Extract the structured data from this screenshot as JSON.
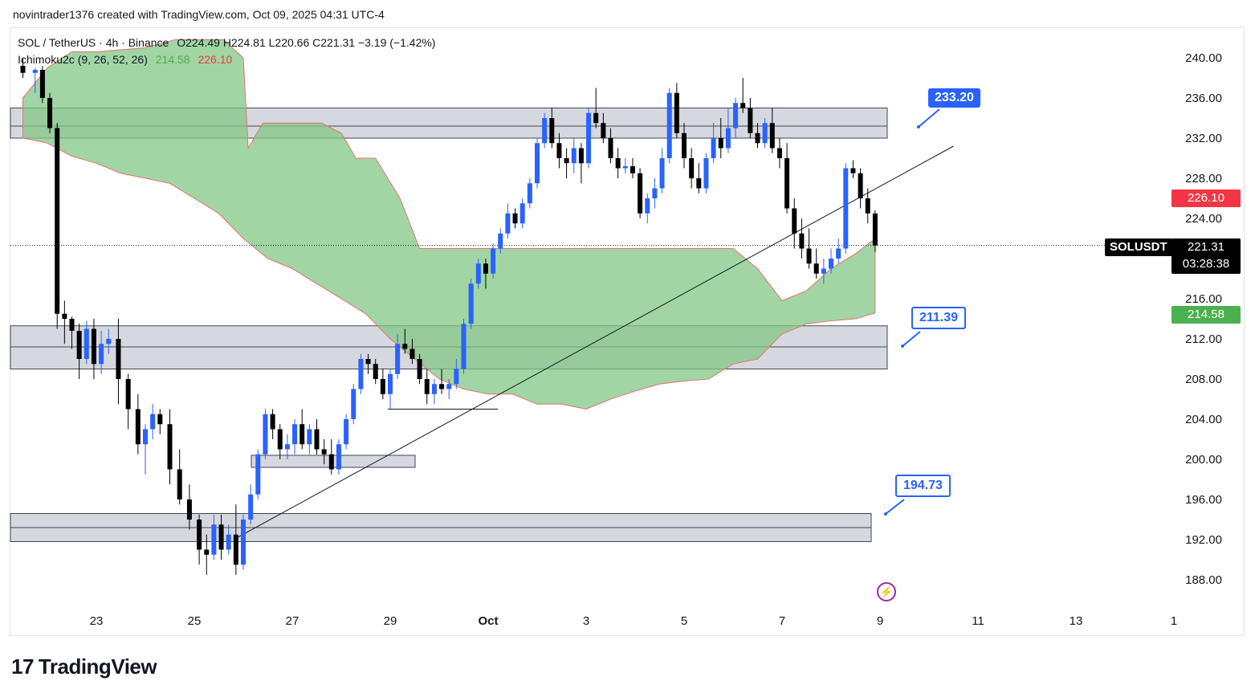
{
  "header": {
    "text": "novintrader1376 created with TradingView.com, Oct 09, 2025 04:31 UTC-4"
  },
  "legend": {
    "symbol_line": "SOL / TetherUS · 4h · Binance",
    "ohlc": "O224.49 H224.81 L220.66 C221.31 −3.19 (−1.42%)",
    "indicator_name": "Ichimoku2c (9, 26, 52, 26)",
    "indicator_val1": "214.58",
    "indicator_val2": "226.10"
  },
  "price_labels": {
    "symbol": "SOLUSDT",
    "last_price": "221.31",
    "countdown": "03:28:38",
    "red_tag": "226.10",
    "green_tag": "214.58"
  },
  "callouts": {
    "upper": "233.20",
    "middle": "211.39",
    "lower": "194.73"
  },
  "logo": {
    "text": "TradingView",
    "mark": "17"
  },
  "colors": {
    "up_candle": "#2962ff",
    "down_candle": "#000000",
    "cloud_fill": "#81c784",
    "cloud_edge": "#e57373",
    "zone_fill": "#d1d4dc",
    "accent_blue": "#2962ff",
    "tag_red": "#f23645",
    "tag_green": "#4caf50"
  },
  "chart_data": {
    "type": "candlestick",
    "title": "SOL / TetherUS · 4h · Binance",
    "ylim": [
      186,
      242
    ],
    "y_ticks": [
      "240.00",
      "236.00",
      "232.00",
      "228.00",
      "224.00",
      "216.00",
      "212.00",
      "208.00",
      "204.00",
      "200.00",
      "196.00",
      "192.00",
      "188.00"
    ],
    "x_ticks": [
      "23",
      "25",
      "27",
      "29",
      "Oct",
      "3",
      "5",
      "7",
      "9",
      "11",
      "13",
      "1"
    ],
    "x_tick_days": [
      23,
      25,
      27,
      29,
      31,
      33,
      35,
      37,
      39,
      41,
      43,
      45
    ],
    "last_price": 221.31,
    "candles": [
      {
        "d": 21.5,
        "o": 239.2,
        "h": 240.0,
        "l": 238.0,
        "c": 238.5
      },
      {
        "d": 21.75,
        "o": 238.5,
        "h": 239.0,
        "l": 236.5,
        "c": 238.8
      },
      {
        "d": 21.9,
        "o": 238.8,
        "h": 239.2,
        "l": 235.5,
        "c": 236.0
      },
      {
        "d": 22.05,
        "o": 236.0,
        "h": 236.5,
        "l": 232.5,
        "c": 233.0
      },
      {
        "d": 22.2,
        "o": 233.0,
        "h": 233.5,
        "l": 213.0,
        "c": 214.5
      },
      {
        "d": 22.35,
        "o": 214.5,
        "h": 215.8,
        "l": 211.5,
        "c": 214.0
      },
      {
        "d": 22.5,
        "o": 214.0,
        "h": 214.2,
        "l": 211.0,
        "c": 212.8
      },
      {
        "d": 22.65,
        "o": 212.8,
        "h": 213.5,
        "l": 208.0,
        "c": 210.0
      },
      {
        "d": 22.8,
        "o": 210.0,
        "h": 213.8,
        "l": 209.5,
        "c": 213.0
      },
      {
        "d": 22.95,
        "o": 213.0,
        "h": 214.0,
        "l": 208.0,
        "c": 209.5
      },
      {
        "d": 23.1,
        "o": 209.5,
        "h": 212.8,
        "l": 208.5,
        "c": 211.5
      },
      {
        "d": 23.25,
        "o": 211.5,
        "h": 213.0,
        "l": 210.5,
        "c": 212.0
      },
      {
        "d": 23.45,
        "o": 212.0,
        "h": 214.0,
        "l": 205.5,
        "c": 208.0
      },
      {
        "d": 23.65,
        "o": 208.0,
        "h": 208.5,
        "l": 203.0,
        "c": 205.0
      },
      {
        "d": 23.85,
        "o": 205.0,
        "h": 206.5,
        "l": 200.5,
        "c": 201.5
      },
      {
        "d": 24.0,
        "o": 201.5,
        "h": 203.5,
        "l": 198.5,
        "c": 203.0
      },
      {
        "d": 24.15,
        "o": 203.0,
        "h": 205.5,
        "l": 202.0,
        "c": 204.5
      },
      {
        "d": 24.3,
        "o": 204.5,
        "h": 205.0,
        "l": 202.5,
        "c": 203.5
      },
      {
        "d": 24.5,
        "o": 203.5,
        "h": 205.0,
        "l": 197.5,
        "c": 199.0
      },
      {
        "d": 24.7,
        "o": 199.0,
        "h": 201.0,
        "l": 195.5,
        "c": 196.0
      },
      {
        "d": 24.9,
        "o": 196.0,
        "h": 197.5,
        "l": 193.0,
        "c": 194.0
      },
      {
        "d": 25.1,
        "o": 194.0,
        "h": 194.5,
        "l": 189.5,
        "c": 191.0
      },
      {
        "d": 25.25,
        "o": 191.0,
        "h": 192.5,
        "l": 188.5,
        "c": 190.5
      },
      {
        "d": 25.4,
        "o": 190.5,
        "h": 194.5,
        "l": 190.0,
        "c": 193.5
      },
      {
        "d": 25.55,
        "o": 193.5,
        "h": 194.5,
        "l": 190.0,
        "c": 191.0
      },
      {
        "d": 25.7,
        "o": 191.0,
        "h": 193.5,
        "l": 190.5,
        "c": 192.5
      },
      {
        "d": 25.85,
        "o": 192.5,
        "h": 195.5,
        "l": 188.5,
        "c": 189.5
      },
      {
        "d": 26.0,
        "o": 189.5,
        "h": 194.5,
        "l": 189.0,
        "c": 194.0
      },
      {
        "d": 26.15,
        "o": 194.0,
        "h": 197.5,
        "l": 193.5,
        "c": 196.5
      },
      {
        "d": 26.3,
        "o": 196.5,
        "h": 201.0,
        "l": 196.0,
        "c": 200.5
      },
      {
        "d": 26.45,
        "o": 200.5,
        "h": 205.0,
        "l": 200.0,
        "c": 204.5
      },
      {
        "d": 26.6,
        "o": 204.5,
        "h": 205.0,
        "l": 202.0,
        "c": 203.0
      },
      {
        "d": 26.75,
        "o": 203.0,
        "h": 203.5,
        "l": 200.0,
        "c": 201.0
      },
      {
        "d": 26.9,
        "o": 201.0,
        "h": 202.5,
        "l": 200.0,
        "c": 201.5
      },
      {
        "d": 27.05,
        "o": 201.5,
        "h": 204.0,
        "l": 200.5,
        "c": 203.5
      },
      {
        "d": 27.2,
        "o": 203.5,
        "h": 205.0,
        "l": 201.0,
        "c": 201.5
      },
      {
        "d": 27.35,
        "o": 201.5,
        "h": 203.5,
        "l": 200.5,
        "c": 203.0
      },
      {
        "d": 27.5,
        "o": 203.0,
        "h": 204.0,
        "l": 200.5,
        "c": 201.0
      },
      {
        "d": 27.65,
        "o": 201.0,
        "h": 202.0,
        "l": 199.5,
        "c": 200.5
      },
      {
        "d": 27.8,
        "o": 200.5,
        "h": 202.0,
        "l": 198.5,
        "c": 199.0
      },
      {
        "d": 27.95,
        "o": 199.0,
        "h": 202.0,
        "l": 198.5,
        "c": 201.5
      },
      {
        "d": 28.1,
        "o": 201.5,
        "h": 204.5,
        "l": 201.0,
        "c": 204.0
      },
      {
        "d": 28.25,
        "o": 204.0,
        "h": 207.5,
        "l": 203.5,
        "c": 207.0
      },
      {
        "d": 28.4,
        "o": 207.0,
        "h": 210.5,
        "l": 206.5,
        "c": 210.0
      },
      {
        "d": 28.55,
        "o": 210.0,
        "h": 210.5,
        "l": 208.5,
        "c": 209.5
      },
      {
        "d": 28.7,
        "o": 209.5,
        "h": 210.0,
        "l": 207.5,
        "c": 208.0
      },
      {
        "d": 28.85,
        "o": 208.0,
        "h": 209.0,
        "l": 206.0,
        "c": 206.5
      },
      {
        "d": 29.0,
        "o": 206.5,
        "h": 209.0,
        "l": 205.0,
        "c": 208.5
      },
      {
        "d": 29.15,
        "o": 208.5,
        "h": 212.5,
        "l": 208.0,
        "c": 211.5
      },
      {
        "d": 29.3,
        "o": 211.5,
        "h": 213.0,
        "l": 210.5,
        "c": 211.0
      },
      {
        "d": 29.45,
        "o": 211.0,
        "h": 212.0,
        "l": 209.5,
        "c": 210.0
      },
      {
        "d": 29.6,
        "o": 210.0,
        "h": 210.5,
        "l": 207.5,
        "c": 208.0
      },
      {
        "d": 29.75,
        "o": 208.0,
        "h": 209.0,
        "l": 205.5,
        "c": 206.5
      },
      {
        "d": 29.9,
        "o": 206.5,
        "h": 208.0,
        "l": 205.5,
        "c": 207.5
      },
      {
        "d": 30.05,
        "o": 207.5,
        "h": 209.0,
        "l": 206.5,
        "c": 207.0
      },
      {
        "d": 30.2,
        "o": 207.0,
        "h": 208.0,
        "l": 206.0,
        "c": 207.5
      },
      {
        "d": 30.35,
        "o": 207.5,
        "h": 210.0,
        "l": 207.0,
        "c": 209.0
      },
      {
        "d": 30.5,
        "o": 209.0,
        "h": 214.0,
        "l": 208.5,
        "c": 213.5
      },
      {
        "d": 30.65,
        "o": 213.5,
        "h": 218.0,
        "l": 213.0,
        "c": 217.5
      },
      {
        "d": 30.8,
        "o": 217.5,
        "h": 220.0,
        "l": 217.0,
        "c": 219.5
      },
      {
        "d": 30.95,
        "o": 219.5,
        "h": 220.0,
        "l": 217.0,
        "c": 218.5
      },
      {
        "d": 31.1,
        "o": 218.5,
        "h": 221.5,
        "l": 218.0,
        "c": 221.0
      },
      {
        "d": 31.25,
        "o": 221.0,
        "h": 223.0,
        "l": 220.5,
        "c": 222.5
      },
      {
        "d": 31.4,
        "o": 222.5,
        "h": 225.5,
        "l": 222.0,
        "c": 224.5
      },
      {
        "d": 31.55,
        "o": 224.5,
        "h": 225.0,
        "l": 223.0,
        "c": 223.5
      },
      {
        "d": 31.7,
        "o": 223.5,
        "h": 226.0,
        "l": 223.0,
        "c": 225.5
      },
      {
        "d": 31.85,
        "o": 225.5,
        "h": 228.0,
        "l": 225.0,
        "c": 227.5
      },
      {
        "d": 32.0,
        "o": 227.5,
        "h": 232.0,
        "l": 227.0,
        "c": 231.5
      },
      {
        "d": 32.15,
        "o": 231.5,
        "h": 234.5,
        "l": 231.0,
        "c": 234.0
      },
      {
        "d": 32.3,
        "o": 234.0,
        "h": 235.0,
        "l": 231.0,
        "c": 231.5
      },
      {
        "d": 32.45,
        "o": 231.5,
        "h": 232.5,
        "l": 229.0,
        "c": 230.0
      },
      {
        "d": 32.6,
        "o": 230.0,
        "h": 231.0,
        "l": 228.0,
        "c": 229.5
      },
      {
        "d": 32.75,
        "o": 229.5,
        "h": 232.0,
        "l": 228.5,
        "c": 231.0
      },
      {
        "d": 32.9,
        "o": 231.0,
        "h": 231.5,
        "l": 227.5,
        "c": 229.5
      },
      {
        "d": 33.05,
        "o": 229.5,
        "h": 235.0,
        "l": 229.0,
        "c": 234.5
      },
      {
        "d": 33.2,
        "o": 234.5,
        "h": 237.0,
        "l": 233.0,
        "c": 233.5
      },
      {
        "d": 33.35,
        "o": 233.5,
        "h": 234.5,
        "l": 231.5,
        "c": 232.0
      },
      {
        "d": 33.5,
        "o": 232.0,
        "h": 233.0,
        "l": 229.5,
        "c": 230.0
      },
      {
        "d": 33.65,
        "o": 230.0,
        "h": 231.0,
        "l": 228.0,
        "c": 229.0
      },
      {
        "d": 33.8,
        "o": 229.0,
        "h": 230.0,
        "l": 228.5,
        "c": 229.2
      },
      {
        "d": 33.95,
        "o": 229.2,
        "h": 230.0,
        "l": 228.0,
        "c": 228.5
      },
      {
        "d": 34.1,
        "o": 228.5,
        "h": 229.0,
        "l": 224.0,
        "c": 224.5
      },
      {
        "d": 34.25,
        "o": 224.5,
        "h": 226.5,
        "l": 223.5,
        "c": 226.0
      },
      {
        "d": 34.4,
        "o": 226.0,
        "h": 228.0,
        "l": 225.0,
        "c": 227.0
      },
      {
        "d": 34.55,
        "o": 227.0,
        "h": 231.0,
        "l": 226.5,
        "c": 230.0
      },
      {
        "d": 34.7,
        "o": 230.0,
        "h": 237.0,
        "l": 229.5,
        "c": 236.5
      },
      {
        "d": 34.85,
        "o": 236.5,
        "h": 237.5,
        "l": 232.0,
        "c": 232.5
      },
      {
        "d": 35.0,
        "o": 232.5,
        "h": 233.5,
        "l": 229.0,
        "c": 230.0
      },
      {
        "d": 35.15,
        "o": 230.0,
        "h": 231.0,
        "l": 227.0,
        "c": 228.0
      },
      {
        "d": 35.3,
        "o": 228.0,
        "h": 229.5,
        "l": 226.5,
        "c": 227.0
      },
      {
        "d": 35.45,
        "o": 227.0,
        "h": 230.5,
        "l": 226.5,
        "c": 230.0
      },
      {
        "d": 35.6,
        "o": 230.0,
        "h": 233.5,
        "l": 229.5,
        "c": 232.0
      },
      {
        "d": 35.75,
        "o": 232.0,
        "h": 234.0,
        "l": 230.0,
        "c": 231.0
      },
      {
        "d": 35.9,
        "o": 231.0,
        "h": 235.0,
        "l": 230.5,
        "c": 233.0
      },
      {
        "d": 36.05,
        "o": 233.0,
        "h": 236.0,
        "l": 232.0,
        "c": 235.5
      },
      {
        "d": 36.2,
        "o": 235.5,
        "h": 238.0,
        "l": 234.5,
        "c": 235.0
      },
      {
        "d": 36.35,
        "o": 235.0,
        "h": 236.0,
        "l": 232.0,
        "c": 232.5
      },
      {
        "d": 36.5,
        "o": 232.5,
        "h": 233.5,
        "l": 231.0,
        "c": 231.5
      },
      {
        "d": 36.65,
        "o": 231.5,
        "h": 234.0,
        "l": 231.0,
        "c": 233.5
      },
      {
        "d": 36.8,
        "o": 233.5,
        "h": 235.0,
        "l": 230.5,
        "c": 231.0
      },
      {
        "d": 36.95,
        "o": 231.0,
        "h": 232.0,
        "l": 229.0,
        "c": 230.0
      },
      {
        "d": 37.1,
        "o": 230.0,
        "h": 231.5,
        "l": 224.5,
        "c": 225.0
      },
      {
        "d": 37.25,
        "o": 225.0,
        "h": 226.0,
        "l": 221.0,
        "c": 222.5
      },
      {
        "d": 37.4,
        "o": 222.5,
        "h": 224.0,
        "l": 220.0,
        "c": 221.0
      },
      {
        "d": 37.55,
        "o": 221.0,
        "h": 223.0,
        "l": 219.0,
        "c": 219.5
      },
      {
        "d": 37.7,
        "o": 219.5,
        "h": 221.0,
        "l": 218.0,
        "c": 218.5
      },
      {
        "d": 37.85,
        "o": 218.5,
        "h": 220.0,
        "l": 217.5,
        "c": 219.0
      },
      {
        "d": 38.0,
        "o": 219.0,
        "h": 221.0,
        "l": 218.5,
        "c": 220.0
      },
      {
        "d": 38.15,
        "o": 220.0,
        "h": 222.0,
        "l": 219.5,
        "c": 221.0
      },
      {
        "d": 38.3,
        "o": 221.0,
        "h": 229.5,
        "l": 220.5,
        "c": 229.0
      },
      {
        "d": 38.45,
        "o": 229.0,
        "h": 229.8,
        "l": 228.0,
        "c": 228.5
      },
      {
        "d": 38.6,
        "o": 228.5,
        "h": 229.0,
        "l": 225.0,
        "c": 226.0
      },
      {
        "d": 38.75,
        "o": 226.0,
        "h": 227.0,
        "l": 223.5,
        "c": 224.5
      },
      {
        "d": 38.9,
        "o": 224.49,
        "h": 224.81,
        "l": 220.66,
        "c": 221.31
      }
    ],
    "annotations": {
      "resistance_zone": [
        232.0,
        235.0
      ],
      "mid_zone": [
        209.0,
        213.3
      ],
      "low_zone": [
        199.2,
        200.4
      ],
      "support_zone": [
        191.8,
        194.6
      ],
      "targets": [
        233.2,
        211.39,
        194.73
      ]
    }
  }
}
